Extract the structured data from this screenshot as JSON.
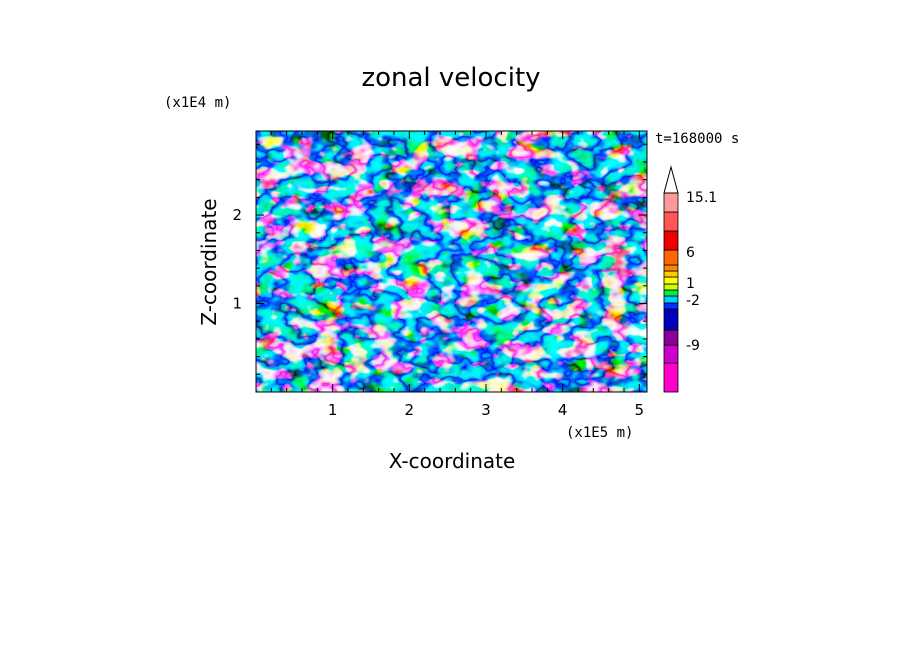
{
  "chart_data": {
    "type": "heatmap",
    "title": "zonal velocity",
    "xlabel": "X-coordinate",
    "ylabel": "Z-coordinate",
    "x_scale_label": "(x1E5 m)",
    "y_scale_label": "(x1E4 m)",
    "time_label": "t=168000 s",
    "xlim": [
      0,
      5.1
    ],
    "ylim": [
      0,
      2.95
    ],
    "x_ticks": [
      "1",
      "2",
      "3",
      "4",
      "5"
    ],
    "x_tick_values": [
      1,
      2,
      3,
      4,
      5
    ],
    "y_ticks": [
      "1",
      "2"
    ],
    "y_tick_values": [
      1,
      2
    ],
    "colorbar": {
      "labels": [
        "15.1",
        "6",
        "1",
        "-2",
        "-9"
      ],
      "colors_bottom_to_top": [
        "#ff00cc",
        "#cc00cc",
        "#880099",
        "#0000bb",
        "#0033ff",
        "#00ccff",
        "#00ee44",
        "#ccff00",
        "#ffff00",
        "#ffcc00",
        "#ff8800",
        "#ff6600",
        "#ee0000",
        "#ff5555",
        "#ff9999",
        "#ffcccc"
      ],
      "extend_top": true
    },
    "grid": false
  }
}
